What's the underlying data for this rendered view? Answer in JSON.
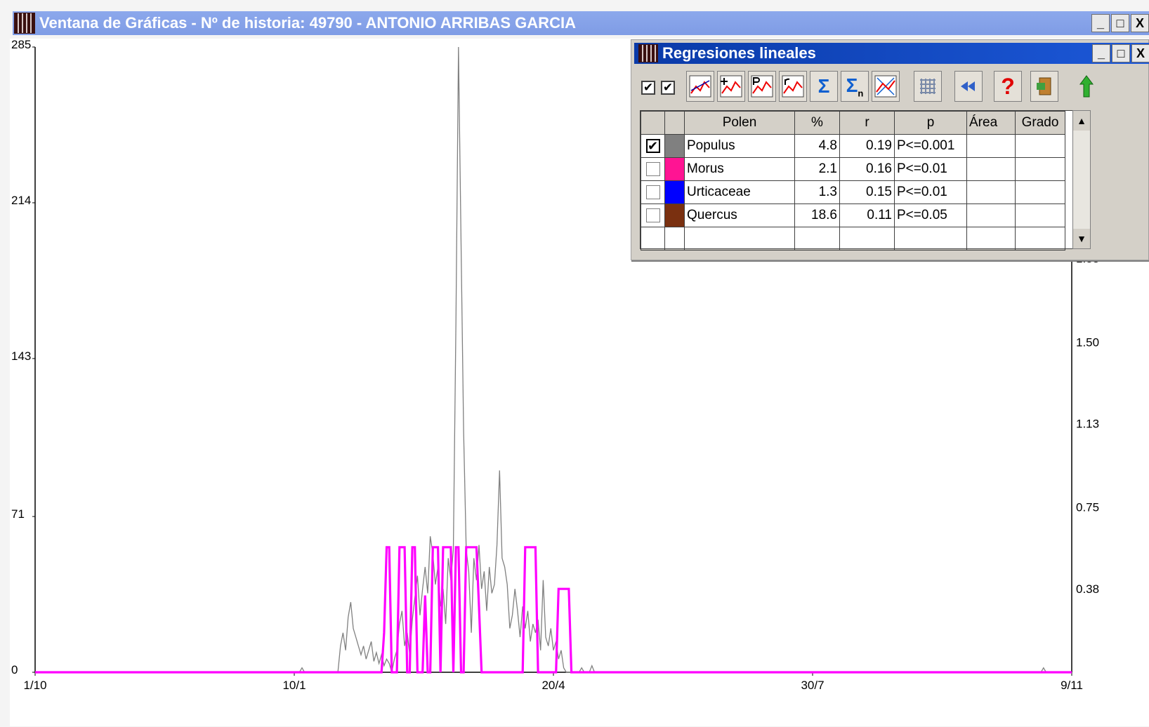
{
  "window": {
    "title": "Ventana de Gráficas - Nº de historia: 49790 - ANTONIO ARRIBAS GARCIA",
    "minimize": "_",
    "maximize": "□",
    "close": "X"
  },
  "regression_window": {
    "title": "Regresiones lineales",
    "minimize": "_",
    "maximize": "□",
    "close": "X",
    "toolbar": {
      "checkbox1_state": "✔",
      "checkbox2_state": "✔",
      "icons": [
        "line-chart-icon",
        "line-chart-add-icon",
        "line-chart-p-icon",
        "line-chart-r-icon",
        "sigma-icon",
        "sigma-n-icon",
        "scatter-icon",
        "grid-icon",
        "rewind-icon",
        "help-icon",
        "exit-icon",
        "up-arrow-icon"
      ]
    },
    "table": {
      "headers": [
        "",
        "",
        "Polen",
        "%",
        "r",
        "p",
        "Área",
        "Grado"
      ],
      "rows": [
        {
          "checked": true,
          "color": "#808080",
          "polen": "Populus",
          "pct": "4.8",
          "r": "0.19",
          "p": "P<=0.001",
          "area": "",
          "grado": ""
        },
        {
          "checked": false,
          "color": "#ff1493",
          "polen": "Morus",
          "pct": "2.1",
          "r": "0.16",
          "p": "P<=0.01",
          "area": "",
          "grado": ""
        },
        {
          "checked": false,
          "color": "#0000ff",
          "polen": "Urticaceae",
          "pct": "1.3",
          "r": "0.15",
          "p": "P<=0.01",
          "area": "",
          "grado": ""
        },
        {
          "checked": false,
          "color": "#7a3010",
          "polen": "Quercus",
          "pct": "18.6",
          "r": "0.11",
          "p": "P<=0.05",
          "area": "",
          "grado": ""
        }
      ],
      "check_mark": "✔"
    }
  },
  "chart_data": {
    "type": "line",
    "x_tick_labels": [
      "1/10",
      "10/1",
      "20/4",
      "30/7",
      "9/11"
    ],
    "x_range": [
      0,
      404
    ],
    "x_ticks": [
      0,
      101,
      202,
      303,
      404
    ],
    "y_left": {
      "ticks": [
        "0",
        "71",
        "143",
        "214",
        "285"
      ],
      "range": [
        0,
        285
      ]
    },
    "y_right": {
      "ticks": [
        "0.38",
        "0.75",
        "1.13",
        "1.50",
        "1.88"
      ],
      "range": [
        0,
        2.84
      ]
    },
    "series": [
      {
        "color": "#808080",
        "width": 1.3,
        "axis": "left",
        "points": [
          [
            0,
            0
          ],
          [
            103,
            0
          ],
          [
            104,
            2
          ],
          [
            105,
            0
          ],
          [
            118,
            0
          ],
          [
            119,
            12
          ],
          [
            120,
            18
          ],
          [
            121,
            10
          ],
          [
            122,
            25
          ],
          [
            123,
            32
          ],
          [
            124,
            20
          ],
          [
            125,
            16
          ],
          [
            126,
            12
          ],
          [
            127,
            8
          ],
          [
            128,
            12
          ],
          [
            129,
            6
          ],
          [
            130,
            10
          ],
          [
            131,
            14
          ],
          [
            132,
            5
          ],
          [
            133,
            9
          ],
          [
            134,
            4
          ],
          [
            135,
            8
          ],
          [
            136,
            3
          ],
          [
            137,
            6
          ],
          [
            138,
            4
          ],
          [
            139,
            0
          ],
          [
            140,
            6
          ],
          [
            141,
            10
          ],
          [
            142,
            22
          ],
          [
            143,
            28
          ],
          [
            144,
            12
          ],
          [
            145,
            18
          ],
          [
            146,
            8
          ],
          [
            147,
            24
          ],
          [
            148,
            34
          ],
          [
            149,
            44
          ],
          [
            150,
            26
          ],
          [
            151,
            38
          ],
          [
            152,
            48
          ],
          [
            153,
            36
          ],
          [
            154,
            62
          ],
          [
            155,
            54
          ],
          [
            156,
            40
          ],
          [
            157,
            48
          ],
          [
            158,
            30
          ],
          [
            159,
            38
          ],
          [
            160,
            22
          ],
          [
            161,
            52
          ],
          [
            162,
            42
          ],
          [
            163,
            56
          ],
          [
            164,
            160
          ],
          [
            165,
            285
          ],
          [
            166,
            195
          ],
          [
            167,
            110
          ],
          [
            168,
            56
          ],
          [
            169,
            46
          ],
          [
            170,
            18
          ],
          [
            171,
            52
          ],
          [
            172,
            42
          ],
          [
            173,
            58
          ],
          [
            174,
            38
          ],
          [
            175,
            46
          ],
          [
            176,
            28
          ],
          [
            177,
            48
          ],
          [
            178,
            36
          ],
          [
            179,
            40
          ],
          [
            180,
            58
          ],
          [
            181,
            92
          ],
          [
            182,
            52
          ],
          [
            183,
            48
          ],
          [
            184,
            40
          ],
          [
            185,
            20
          ],
          [
            186,
            26
          ],
          [
            187,
            38
          ],
          [
            188,
            28
          ],
          [
            189,
            16
          ],
          [
            190,
            30
          ],
          [
            191,
            20
          ],
          [
            192,
            28
          ],
          [
            193,
            14
          ],
          [
            194,
            22
          ],
          [
            195,
            18
          ],
          [
            196,
            24
          ],
          [
            197,
            10
          ],
          [
            198,
            42
          ],
          [
            199,
            16
          ],
          [
            200,
            12
          ],
          [
            201,
            20
          ],
          [
            202,
            10
          ],
          [
            203,
            14
          ],
          [
            204,
            6
          ],
          [
            205,
            10
          ],
          [
            206,
            2
          ],
          [
            207,
            0
          ],
          [
            212,
            0
          ],
          [
            213,
            2
          ],
          [
            214,
            0
          ],
          [
            216,
            0
          ],
          [
            217,
            3
          ],
          [
            218,
            0
          ],
          [
            392,
            0
          ],
          [
            393,
            2
          ],
          [
            394,
            0
          ],
          [
            404,
            0
          ]
        ]
      },
      {
        "color": "#ff00ff",
        "width": 3.2,
        "axis": "left",
        "points": [
          [
            0,
            0
          ],
          [
            134,
            0
          ],
          [
            135,
            0
          ],
          [
            136,
            18
          ],
          [
            137,
            57
          ],
          [
            138,
            57
          ],
          [
            139,
            0
          ],
          [
            140,
            0
          ],
          [
            141,
            0
          ],
          [
            142,
            57
          ],
          [
            143,
            57
          ],
          [
            144,
            57
          ],
          [
            145,
            0
          ],
          [
            146,
            0
          ],
          [
            147,
            57
          ],
          [
            148,
            57
          ],
          [
            149,
            0
          ],
          [
            150,
            0
          ],
          [
            151,
            0
          ],
          [
            152,
            35
          ],
          [
            153,
            0
          ],
          [
            154,
            0
          ],
          [
            155,
            57
          ],
          [
            156,
            57
          ],
          [
            157,
            57
          ],
          [
            158,
            0
          ],
          [
            159,
            57
          ],
          [
            160,
            57
          ],
          [
            161,
            57
          ],
          [
            162,
            57
          ],
          [
            163,
            0
          ],
          [
            164,
            57
          ],
          [
            165,
            57
          ],
          [
            166,
            0
          ],
          [
            167,
            0
          ],
          [
            168,
            57
          ],
          [
            169,
            57
          ],
          [
            170,
            57
          ],
          [
            171,
            57
          ],
          [
            172,
            57
          ],
          [
            173,
            30
          ],
          [
            174,
            0
          ],
          [
            175,
            0
          ],
          [
            188,
            0
          ],
          [
            189,
            0
          ],
          [
            190,
            0
          ],
          [
            191,
            57
          ],
          [
            192,
            57
          ],
          [
            193,
            57
          ],
          [
            194,
            57
          ],
          [
            195,
            57
          ],
          [
            196,
            0
          ],
          [
            197,
            0
          ],
          [
            198,
            0
          ],
          [
            203,
            0
          ],
          [
            204,
            38
          ],
          [
            205,
            38
          ],
          [
            206,
            38
          ],
          [
            207,
            38
          ],
          [
            208,
            38
          ],
          [
            209,
            0
          ],
          [
            210,
            0
          ],
          [
            404,
            0
          ]
        ]
      }
    ]
  }
}
